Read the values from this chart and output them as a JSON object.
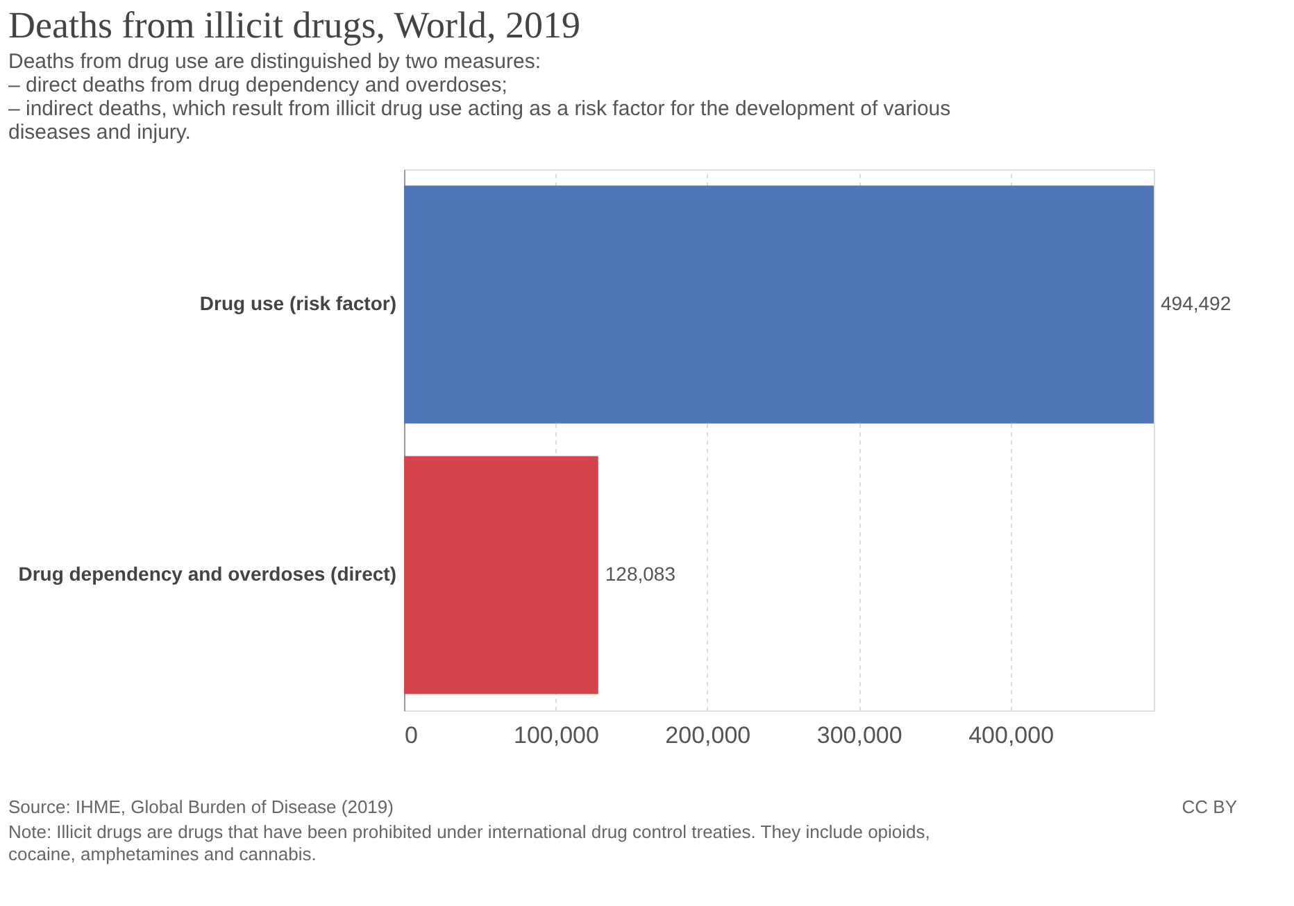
{
  "chart_data": {
    "type": "bar",
    "orientation": "horizontal",
    "title": "Deaths from illicit drugs, World, 2019",
    "subtitle": "Deaths from drug use are distinguished by two measures:\n– direct deaths from drug dependency and overdoses;\n– indirect deaths, which result from illicit drug use acting as a risk factor for the development of various\ndiseases and injury.",
    "categories": [
      "Drug use (risk factor)",
      "Drug dependency and overdoses (direct)"
    ],
    "values": [
      494492,
      128083
    ],
    "colors": [
      "#5077b5",
      "#d4454b"
    ],
    "xlim": [
      0,
      494492
    ],
    "xticks": [
      0,
      {
        "value": 100000,
        "label": "100,000"
      },
      {
        "value": 200000,
        "label": "200,000"
      },
      {
        "value": 300000,
        "label": "300,000"
      },
      {
        "value": 400000,
        "label": "400,000"
      }
    ],
    "grid": "x",
    "value_labels": [
      "494,492",
      "128,083"
    ],
    "annotations": [
      "Source: IHME, Global Burden of Disease (2019)",
      "CC BY",
      "Note: Illicit drugs are drugs that have been prohibited under international drug control treaties. They include opioids, cocaine, amphetamines and cannabis."
    ]
  }
}
